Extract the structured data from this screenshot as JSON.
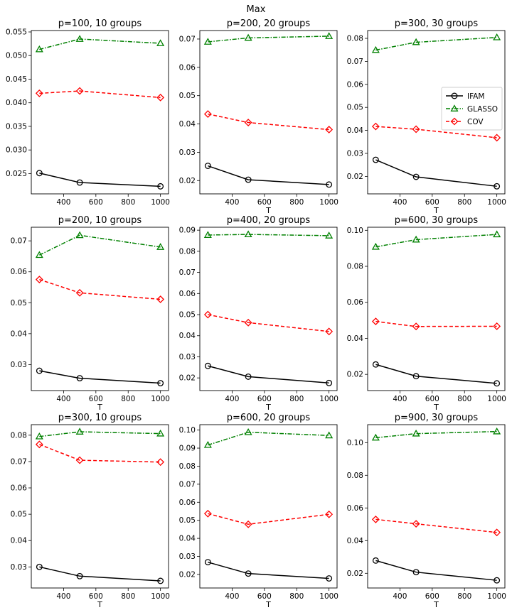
{
  "figure_title": "Max",
  "chart_data": [
    {
      "type": "line",
      "title": "p=100, 10 groups",
      "xlabel": "",
      "x": [
        250,
        500,
        1000
      ],
      "xlim": [
        200,
        1050
      ],
      "xticks": [
        400,
        600,
        800,
        1000
      ],
      "ylim": [
        0.0207,
        0.0553
      ],
      "yticks": [
        0.025,
        0.03,
        0.035,
        0.04,
        0.045,
        0.05,
        0.055
      ],
      "ytick_labels": [
        "0.025",
        "0.030",
        "0.035",
        "0.040",
        "0.045",
        "0.050",
        "0.055"
      ],
      "series": [
        {
          "name": "IFAM",
          "values": [
            0.0251,
            0.0231,
            0.0223
          ]
        },
        {
          "name": "GLASSO",
          "values": [
            0.0513,
            0.0535,
            0.0526
          ]
        },
        {
          "name": "COV",
          "values": [
            0.042,
            0.0425,
            0.0411
          ]
        }
      ]
    },
    {
      "type": "line",
      "title": "p=200, 20 groups",
      "xlabel": "T",
      "x": [
        250,
        500,
        1000
      ],
      "xlim": [
        200,
        1050
      ],
      "xticks": [
        400,
        600,
        800,
        1000
      ],
      "ylim": [
        0.0153,
        0.073
      ],
      "yticks": [
        0.02,
        0.03,
        0.04,
        0.05,
        0.06,
        0.07
      ],
      "ytick_labels": [
        "0.02",
        "0.03",
        "0.04",
        "0.05",
        "0.06",
        "0.07"
      ],
      "series": [
        {
          "name": "IFAM",
          "values": [
            0.0252,
            0.0203,
            0.0186
          ]
        },
        {
          "name": "GLASSO",
          "values": [
            0.069,
            0.0704,
            0.071
          ]
        },
        {
          "name": "COV",
          "values": [
            0.0435,
            0.0405,
            0.038
          ]
        }
      ]
    },
    {
      "type": "line",
      "title": "p=300, 30 groups",
      "xlabel": "T",
      "x": [
        250,
        500,
        1000
      ],
      "xlim": [
        200,
        1050
      ],
      "xticks": [
        400,
        600,
        800,
        1000
      ],
      "ylim": [
        0.0124,
        0.0834
      ],
      "yticks": [
        0.02,
        0.03,
        0.04,
        0.05,
        0.06,
        0.07,
        0.08
      ],
      "ytick_labels": [
        "0.02",
        "0.03",
        "0.04",
        "0.05",
        "0.06",
        "0.07",
        "0.08"
      ],
      "legend": {
        "location": "center-right",
        "entries": [
          "IFAM",
          "GLASSO",
          "COV"
        ]
      },
      "series": [
        {
          "name": "IFAM",
          "values": [
            0.0272,
            0.0198,
            0.0157
          ]
        },
        {
          "name": "GLASSO",
          "values": [
            0.0749,
            0.0783,
            0.0804
          ]
        },
        {
          "name": "COV",
          "values": [
            0.0417,
            0.0405,
            0.0368
          ]
        }
      ]
    },
    {
      "type": "line",
      "title": "p=200, 10 groups",
      "xlabel": "T",
      "x": [
        250,
        500,
        1000
      ],
      "xlim": [
        200,
        1050
      ],
      "xticks": [
        400,
        600,
        800,
        1000
      ],
      "ylim": [
        0.0216,
        0.0744
      ],
      "yticks": [
        0.03,
        0.04,
        0.05,
        0.06,
        0.07
      ],
      "ytick_labels": [
        "0.03",
        "0.04",
        "0.05",
        "0.06",
        "0.07"
      ],
      "series": [
        {
          "name": "IFAM",
          "values": [
            0.028,
            0.0256,
            0.024
          ]
        },
        {
          "name": "GLASSO",
          "values": [
            0.0654,
            0.0718,
            0.068
          ]
        },
        {
          "name": "COV",
          "values": [
            0.0575,
            0.0532,
            0.0511
          ]
        }
      ]
    },
    {
      "type": "line",
      "title": "p=400, 20 groups",
      "xlabel": "T",
      "x": [
        250,
        500,
        1000
      ],
      "xlim": [
        200,
        1050
      ],
      "xticks": [
        400,
        600,
        800,
        1000
      ],
      "ylim": [
        0.014,
        0.0914
      ],
      "yticks": [
        0.02,
        0.03,
        0.04,
        0.05,
        0.06,
        0.07,
        0.08,
        0.09
      ],
      "ytick_labels": [
        "0.02",
        "0.03",
        "0.04",
        "0.05",
        "0.06",
        "0.07",
        "0.08",
        "0.09"
      ],
      "series": [
        {
          "name": "IFAM",
          "values": [
            0.0257,
            0.0206,
            0.0176
          ]
        },
        {
          "name": "GLASSO",
          "values": [
            0.0877,
            0.088,
            0.0874
          ]
        },
        {
          "name": "COV",
          "values": [
            0.05,
            0.0462,
            0.042
          ]
        }
      ]
    },
    {
      "type": "line",
      "title": "p=600, 30 groups",
      "xlabel": "T",
      "x": [
        250,
        500,
        1000
      ],
      "xlim": [
        200,
        1050
      ],
      "xticks": [
        400,
        600,
        800,
        1000
      ],
      "ylim": [
        0.011,
        0.1017
      ],
      "yticks": [
        0.02,
        0.04,
        0.06,
        0.08,
        0.1
      ],
      "ytick_labels": [
        "0.02",
        "0.04",
        "0.06",
        "0.08",
        "0.10"
      ],
      "series": [
        {
          "name": "IFAM",
          "values": [
            0.0255,
            0.019,
            0.015
          ]
        },
        {
          "name": "GLASSO",
          "values": [
            0.0908,
            0.0948,
            0.0977
          ]
        },
        {
          "name": "COV",
          "values": [
            0.0494,
            0.0466,
            0.0467
          ]
        }
      ]
    },
    {
      "type": "line",
      "title": "p=300, 10 groups",
      "xlabel": "T",
      "x": [
        250,
        500,
        1000
      ],
      "xlim": [
        200,
        1050
      ],
      "xticks": [
        400,
        600,
        800,
        1000
      ],
      "ylim": [
        0.022,
        0.084
      ],
      "yticks": [
        0.03,
        0.04,
        0.05,
        0.06,
        0.07,
        0.08
      ],
      "ytick_labels": [
        "0.03",
        "0.04",
        "0.05",
        "0.06",
        "0.07",
        "0.08"
      ],
      "series": [
        {
          "name": "IFAM",
          "values": [
            0.03,
            0.0265,
            0.0247
          ]
        },
        {
          "name": "GLASSO",
          "values": [
            0.0795,
            0.0813,
            0.0806
          ]
        },
        {
          "name": "COV",
          "values": [
            0.0765,
            0.0705,
            0.0698
          ]
        }
      ]
    },
    {
      "type": "line",
      "title": "p=600, 20 groups",
      "xlabel": "T",
      "x": [
        250,
        500,
        1000
      ],
      "xlim": [
        200,
        1050
      ],
      "xticks": [
        400,
        600,
        800,
        1000
      ],
      "ylim": [
        0.0125,
        0.103
      ],
      "yticks": [
        0.02,
        0.03,
        0.04,
        0.05,
        0.06,
        0.07,
        0.08,
        0.09,
        0.1
      ],
      "ytick_labels": [
        "0.02",
        "0.03",
        "0.04",
        "0.05",
        "0.06",
        "0.07",
        "0.08",
        "0.09",
        "0.10"
      ],
      "series": [
        {
          "name": "IFAM",
          "values": [
            0.0268,
            0.0205,
            0.0178
          ]
        },
        {
          "name": "GLASSO",
          "values": [
            0.0917,
            0.0988,
            0.097
          ]
        },
        {
          "name": "COV",
          "values": [
            0.0537,
            0.0478,
            0.0533
          ]
        }
      ]
    },
    {
      "type": "line",
      "title": "p=900, 30 groups",
      "xlabel": "T",
      "x": [
        250,
        500,
        1000
      ],
      "xlim": [
        200,
        1050
      ],
      "xticks": [
        400,
        600,
        800,
        1000
      ],
      "ylim": [
        0.011,
        0.111
      ],
      "yticks": [
        0.02,
        0.04,
        0.06,
        0.08,
        0.1
      ],
      "ytick_labels": [
        "0.02",
        "0.04",
        "0.06",
        "0.08",
        "0.10"
      ],
      "series": [
        {
          "name": "IFAM",
          "values": [
            0.0278,
            0.0207,
            0.0157
          ]
        },
        {
          "name": "GLASSO",
          "values": [
            0.103,
            0.1055,
            0.1068
          ]
        },
        {
          "name": "COV",
          "values": [
            0.053,
            0.0503,
            0.045
          ]
        }
      ]
    }
  ]
}
